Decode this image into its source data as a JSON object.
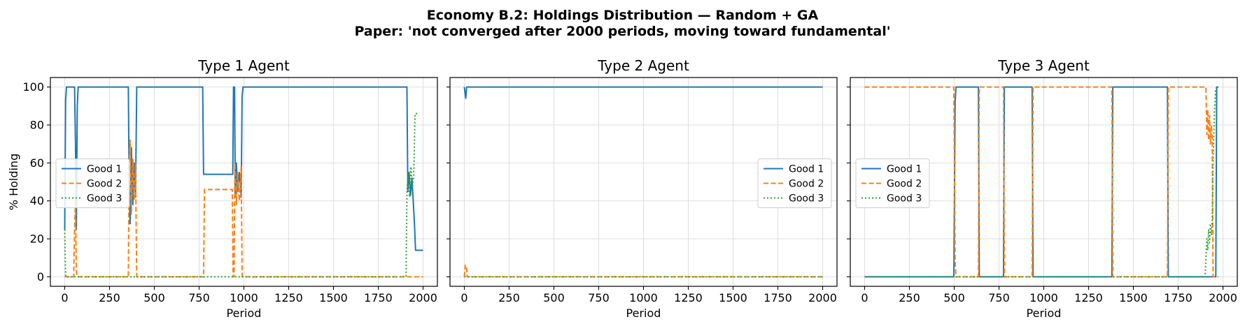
{
  "figure": {
    "title_line1": "Economy B.2: Holdings Distribution — Random + GA",
    "title_line2": "Paper: 'not converged after 2000 periods, moving toward fundamental'"
  },
  "colors": {
    "good1": "#1f77b4",
    "good2": "#ff7f0e",
    "good3": "#2ca02c"
  },
  "chart_data": [
    {
      "type": "line",
      "title": "Type 1 Agent",
      "xlabel": "Period",
      "ylabel": "% Holding",
      "xlim": [
        -80,
        2080
      ],
      "ylim": [
        -5,
        105
      ],
      "xticks": [
        0,
        250,
        500,
        750,
        1000,
        1250,
        1500,
        1750,
        2000
      ],
      "yticks": [
        0,
        20,
        40,
        60,
        80,
        100
      ],
      "grid": true,
      "legend": "center-left",
      "series": [
        {
          "name": "Good 1",
          "style": "solid",
          "color": "#1f77b4",
          "points": [
            [
              0,
              25
            ],
            [
              5,
              93
            ],
            [
              10,
              100
            ],
            [
              55,
              100
            ],
            [
              60,
              70
            ],
            [
              65,
              25
            ],
            [
              70,
              90
            ],
            [
              75,
              100
            ],
            [
              355,
              100
            ],
            [
              360,
              45
            ],
            [
              365,
              28
            ],
            [
              372,
              68
            ],
            [
              380,
              38
            ],
            [
              388,
              60
            ],
            [
              395,
              42
            ],
            [
              402,
              100
            ],
            [
              770,
              100
            ],
            [
              775,
              54
            ],
            [
              938,
              54
            ],
            [
              942,
              100
            ],
            [
              948,
              100
            ],
            [
              952,
              42
            ],
            [
              958,
              60
            ],
            [
              965,
              45
            ],
            [
              975,
              55
            ],
            [
              985,
              42
            ],
            [
              990,
              95
            ],
            [
              995,
              100
            ],
            [
              1910,
              100
            ],
            [
              1915,
              45
            ],
            [
              1922,
              55
            ],
            [
              1930,
              43
            ],
            [
              1938,
              52
            ],
            [
              1945,
              40
            ],
            [
              1952,
              28
            ],
            [
              1958,
              14
            ],
            [
              2000,
              14
            ]
          ]
        },
        {
          "name": "Good 2",
          "style": "dashed",
          "color": "#ff7f0e",
          "points": [
            [
              0,
              0
            ],
            [
              50,
              0
            ],
            [
              55,
              25
            ],
            [
              60,
              40
            ],
            [
              65,
              3
            ],
            [
              70,
              0
            ],
            [
              355,
              0
            ],
            [
              360,
              60
            ],
            [
              365,
              72
            ],
            [
              372,
              33
            ],
            [
              380,
              62
            ],
            [
              388,
              40
            ],
            [
              395,
              60
            ],
            [
              402,
              0
            ],
            [
              775,
              0
            ],
            [
              780,
              46
            ],
            [
              935,
              46
            ],
            [
              940,
              0
            ],
            [
              945,
              0
            ],
            [
              950,
              60
            ],
            [
              958,
              38
            ],
            [
              965,
              55
            ],
            [
              975,
              40
            ],
            [
              985,
              58
            ],
            [
              990,
              0
            ],
            [
              2000,
              0
            ]
          ]
        },
        {
          "name": "Good 3",
          "style": "dotted",
          "color": "#2ca02c",
          "points": [
            [
              0,
              25
            ],
            [
              5,
              0
            ],
            [
              1905,
              0
            ],
            [
              1910,
              45
            ],
            [
              1918,
              55
            ],
            [
              1925,
              42
            ],
            [
              1932,
              58
            ],
            [
              1940,
              47
            ],
            [
              1948,
              53
            ],
            [
              1955,
              86
            ],
            [
              1975,
              86
            ]
          ]
        }
      ]
    },
    {
      "type": "line",
      "title": "Type 2 Agent",
      "xlabel": "Period",
      "ylabel": "",
      "xlim": [
        -80,
        2080
      ],
      "ylim": [
        -5,
        105
      ],
      "xticks": [
        0,
        250,
        500,
        750,
        1000,
        1250,
        1500,
        1750,
        2000
      ],
      "yticks": [
        0,
        20,
        40,
        60,
        80,
        100
      ],
      "grid": true,
      "legend": "center-right",
      "series": [
        {
          "name": "Good 1",
          "style": "solid",
          "color": "#1f77b4",
          "points": [
            [
              0,
              100
            ],
            [
              8,
              94
            ],
            [
              13,
              100
            ],
            [
              2000,
              100
            ]
          ]
        },
        {
          "name": "Good 2",
          "style": "dashed",
          "color": "#ff7f0e",
          "points": [
            [
              0,
              0
            ],
            [
              5,
              6
            ],
            [
              12,
              6
            ],
            [
              16,
              0
            ],
            [
              2000,
              0
            ]
          ]
        },
        {
          "name": "Good 3",
          "style": "dotted",
          "color": "#2ca02c",
          "points": [
            [
              0,
              0
            ],
            [
              2000,
              0
            ]
          ]
        }
      ]
    },
    {
      "type": "line",
      "title": "Type 3 Agent",
      "xlabel": "Period",
      "ylabel": "",
      "xlim": [
        -80,
        2080
      ],
      "ylim": [
        -5,
        105
      ],
      "xticks": [
        0,
        250,
        500,
        750,
        1000,
        1250,
        1500,
        1750,
        2000
      ],
      "yticks": [
        0,
        20,
        40,
        60,
        80,
        100
      ],
      "grid": true,
      "legend": "center-left",
      "series": [
        {
          "name": "Good 1",
          "style": "solid",
          "color": "#1f77b4",
          "points": [
            [
              0,
              0
            ],
            [
              498,
              0
            ],
            [
              505,
              92
            ],
            [
              510,
              100
            ],
            [
              635,
              100
            ],
            [
              640,
              0
            ],
            [
              775,
              0
            ],
            [
              780,
              100
            ],
            [
              935,
              100
            ],
            [
              940,
              0
            ],
            [
              1380,
              0
            ],
            [
              1385,
              100
            ],
            [
              1690,
              100
            ],
            [
              1695,
              0
            ],
            [
              1960,
              0
            ],
            [
              1965,
              100
            ],
            [
              1975,
              100
            ]
          ]
        },
        {
          "name": "Good 2",
          "style": "dashed",
          "color": "#ff7f0e",
          "points": [
            [
              0,
              100
            ],
            [
              498,
              100
            ],
            [
              505,
              8
            ],
            [
              510,
              0
            ],
            [
              635,
              0
            ],
            [
              640,
              100
            ],
            [
              775,
              100
            ],
            [
              780,
              0
            ],
            [
              935,
              0
            ],
            [
              940,
              100
            ],
            [
              1380,
              100
            ],
            [
              1385,
              0
            ],
            [
              1690,
              0
            ],
            [
              1695,
              100
            ],
            [
              1905,
              100
            ],
            [
              1910,
              75
            ],
            [
              1915,
              88
            ],
            [
              1920,
              72
            ],
            [
              1925,
              85
            ],
            [
              1930,
              70
            ],
            [
              1935,
              80
            ],
            [
              1940,
              73
            ],
            [
              1945,
              0
            ],
            [
              1975,
              0
            ]
          ]
        },
        {
          "name": "Good 3",
          "style": "dotted",
          "color": "#2ca02c",
          "points": [
            [
              0,
              0
            ],
            [
              1900,
              0
            ],
            [
              1905,
              10
            ],
            [
              1910,
              20
            ],
            [
              1915,
              14
            ],
            [
              1920,
              25
            ],
            [
              1925,
              18
            ],
            [
              1930,
              28
            ],
            [
              1935,
              22
            ],
            [
              1940,
              30
            ],
            [
              1945,
              60
            ],
            [
              1952,
              85
            ],
            [
              1958,
              98
            ],
            [
              1965,
              100
            ],
            [
              1975,
              100
            ]
          ]
        }
      ]
    }
  ]
}
